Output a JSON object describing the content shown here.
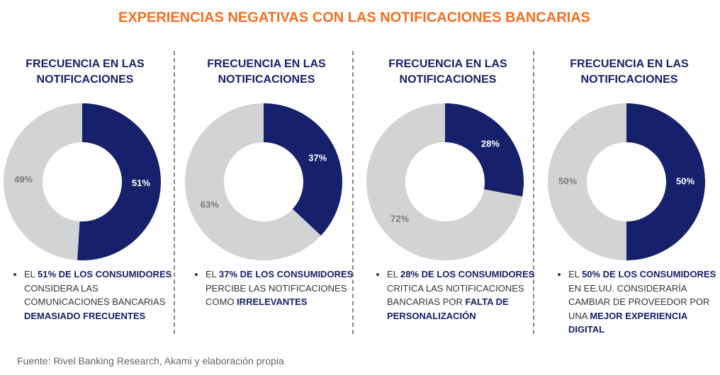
{
  "title": "EXPERIENCIAS NEGATIVAS CON LAS NOTIFICACIONES BANCARIAS",
  "source": "Fuente: Rivel Banking Research, Akami y elaboración propia",
  "chart_data": [
    {
      "type": "pie",
      "title": "FRECUENCIA EN LAS NOTIFICACIONES",
      "values": [
        51,
        49
      ],
      "value_labels": [
        "51%",
        "49%"
      ],
      "colors": [
        "#17206a",
        "#d1d3d4"
      ],
      "description": [
        {
          "text": "EL ",
          "bold": false
        },
        {
          "text": "51% DE LOS CONSUMIDORES",
          "bold": true
        },
        {
          "text": " CONSIDERA LAS COMUNICACIONES BANCARIAS ",
          "bold": false
        },
        {
          "text": "DEMASIADO FRECUENTES",
          "bold": true
        }
      ]
    },
    {
      "type": "pie",
      "title": "FRECUENCIA EN LAS NOTIFICACIONES",
      "values": [
        37,
        63
      ],
      "value_labels": [
        "37%",
        "63%"
      ],
      "colors": [
        "#17206a",
        "#d1d3d4"
      ],
      "description": [
        {
          "text": "EL ",
          "bold": false
        },
        {
          "text": "37% DE LOS CONSUMIDORES",
          "bold": true
        },
        {
          "text": " PERCIBE LAS NOTIFICACIONES COMO ",
          "bold": false
        },
        {
          "text": "IRRELEVANTES",
          "bold": true
        }
      ]
    },
    {
      "type": "pie",
      "title": "FRECUENCIA EN LAS NOTIFICACIONES",
      "values": [
        28,
        72
      ],
      "value_labels": [
        "28%",
        "72%"
      ],
      "colors": [
        "#17206a",
        "#d1d3d4"
      ],
      "description": [
        {
          "text": "EL ",
          "bold": false
        },
        {
          "text": "28% DE LOS CONSUMIDORES",
          "bold": true
        },
        {
          "text": " CRITICA LAS NOTIFICACIONES BANCARIAS POR ",
          "bold": false
        },
        {
          "text": "FALTA DE PERSONALIZACIÓN",
          "bold": true
        }
      ]
    },
    {
      "type": "pie",
      "title": "FRECUENCIA EN LAS NOTIFICACIONES",
      "values": [
        50,
        50
      ],
      "value_labels": [
        "50%",
        "50%"
      ],
      "colors": [
        "#17206a",
        "#d1d3d4"
      ],
      "description": [
        {
          "text": "EL ",
          "bold": false
        },
        {
          "text": "50% DE LOS CONSUMIDORES",
          "bold": true
        },
        {
          "text": " EN EE.UU. CONSIDERARÍA CAMBIAR DE PROVEEDOR POR UNA ",
          "bold": false
        },
        {
          "text": "MEJOR EXPERIENCIA DIGITAL",
          "bold": true
        }
      ]
    }
  ]
}
